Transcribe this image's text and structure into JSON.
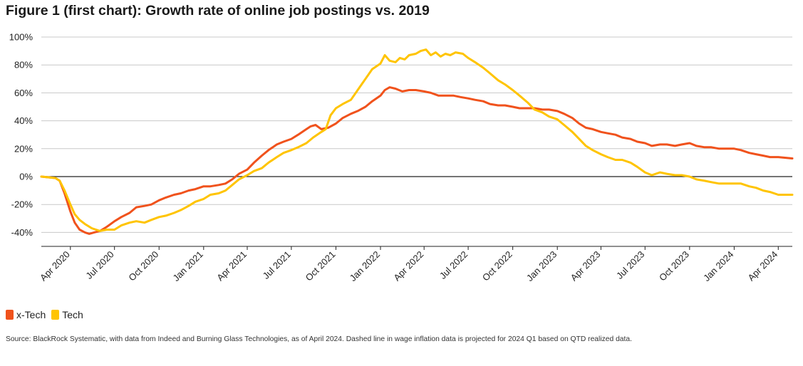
{
  "title": "Figure 1 (first chart): Growth rate of online job postings vs. 2019",
  "source": "Source: BlackRock Systematic, with data from Indeed and Burning Glass Technologies, as of April 2024. Dashed line in wage inflation data is projected for 2024 Q1 based on QTD realized data.",
  "chart_data": {
    "type": "line",
    "title": "Figure 1 (first chart): Growth rate of online job postings vs. 2019",
    "xlabel": "",
    "ylabel": "",
    "ylim": [
      -0.5,
      1.0
    ],
    "y_ticks": [
      1.0,
      0.8,
      0.6,
      0.4,
      0.2,
      0.0,
      -0.2,
      -0.4
    ],
    "y_tick_labels": [
      "100%",
      "80%",
      "60%",
      "40%",
      "20%",
      "0%",
      "-20%",
      "-40%"
    ],
    "x_range": [
      "2020-02-01",
      "2024-04-30"
    ],
    "x_ticks": [
      "2020-04-01",
      "2020-07-01",
      "2020-10-01",
      "2021-01-01",
      "2021-04-01",
      "2021-07-01",
      "2021-10-01",
      "2022-01-01",
      "2022-04-01",
      "2022-07-01",
      "2022-10-01",
      "2023-01-01",
      "2023-04-01",
      "2023-07-01",
      "2023-10-01",
      "2024-01-01",
      "2024-04-01"
    ],
    "x_tick_labels": [
      "Apr 2020",
      "Jul 2020",
      "Oct 2020",
      "Jan 2021",
      "Apr 2021",
      "Jul 2021",
      "Oct 2021",
      "Jan 2022",
      "Apr 2022",
      "Jul 2022",
      "Oct 2022",
      "Jan 2023",
      "Apr 2023",
      "Jul 2023",
      "Oct 2023",
      "Jan 2024",
      "Apr 2024"
    ],
    "grid": true,
    "legend_position": "bottom-left",
    "series": [
      {
        "name": "x-Tech",
        "color": "#F0521C",
        "points": [
          [
            "2020-02-01",
            0.0
          ],
          [
            "2020-03-01",
            -0.01
          ],
          [
            "2020-03-10",
            -0.03
          ],
          [
            "2020-03-20",
            -0.12
          ],
          [
            "2020-04-01",
            -0.25
          ],
          [
            "2020-04-10",
            -0.33
          ],
          [
            "2020-04-20",
            -0.38
          ],
          [
            "2020-05-01",
            -0.4
          ],
          [
            "2020-05-10",
            -0.41
          ],
          [
            "2020-05-20",
            -0.4
          ],
          [
            "2020-06-01",
            -0.39
          ],
          [
            "2020-06-15",
            -0.36
          ],
          [
            "2020-07-01",
            -0.32
          ],
          [
            "2020-07-15",
            -0.29
          ],
          [
            "2020-08-01",
            -0.26
          ],
          [
            "2020-08-15",
            -0.22
          ],
          [
            "2020-09-01",
            -0.21
          ],
          [
            "2020-09-15",
            -0.2
          ],
          [
            "2020-10-01",
            -0.17
          ],
          [
            "2020-10-15",
            -0.15
          ],
          [
            "2020-11-01",
            -0.13
          ],
          [
            "2020-11-15",
            -0.12
          ],
          [
            "2020-12-01",
            -0.1
          ],
          [
            "2020-12-15",
            -0.09
          ],
          [
            "2021-01-01",
            -0.07
          ],
          [
            "2021-01-15",
            -0.07
          ],
          [
            "2021-02-01",
            -0.06
          ],
          [
            "2021-02-15",
            -0.05
          ],
          [
            "2021-03-01",
            -0.02
          ],
          [
            "2021-03-15",
            0.02
          ],
          [
            "2021-04-01",
            0.05
          ],
          [
            "2021-04-15",
            0.1
          ],
          [
            "2021-05-01",
            0.15
          ],
          [
            "2021-05-15",
            0.19
          ],
          [
            "2021-06-01",
            0.23
          ],
          [
            "2021-06-15",
            0.25
          ],
          [
            "2021-07-01",
            0.27
          ],
          [
            "2021-07-15",
            0.3
          ],
          [
            "2021-08-01",
            0.34
          ],
          [
            "2021-08-10",
            0.36
          ],
          [
            "2021-08-20",
            0.37
          ],
          [
            "2021-09-01",
            0.34
          ],
          [
            "2021-09-15",
            0.35
          ],
          [
            "2021-10-01",
            0.38
          ],
          [
            "2021-10-15",
            0.42
          ],
          [
            "2021-11-01",
            0.45
          ],
          [
            "2021-11-15",
            0.47
          ],
          [
            "2021-12-01",
            0.5
          ],
          [
            "2021-12-15",
            0.54
          ],
          [
            "2022-01-01",
            0.58
          ],
          [
            "2022-01-10",
            0.62
          ],
          [
            "2022-01-20",
            0.64
          ],
          [
            "2022-02-01",
            0.63
          ],
          [
            "2022-02-15",
            0.61
          ],
          [
            "2022-03-01",
            0.62
          ],
          [
            "2022-03-15",
            0.62
          ],
          [
            "2022-04-01",
            0.61
          ],
          [
            "2022-04-15",
            0.6
          ],
          [
            "2022-05-01",
            0.58
          ],
          [
            "2022-05-15",
            0.58
          ],
          [
            "2022-06-01",
            0.58
          ],
          [
            "2022-06-15",
            0.57
          ],
          [
            "2022-07-01",
            0.56
          ],
          [
            "2022-07-15",
            0.55
          ],
          [
            "2022-08-01",
            0.54
          ],
          [
            "2022-08-15",
            0.52
          ],
          [
            "2022-09-01",
            0.51
          ],
          [
            "2022-09-15",
            0.51
          ],
          [
            "2022-10-01",
            0.5
          ],
          [
            "2022-10-15",
            0.49
          ],
          [
            "2022-11-01",
            0.49
          ],
          [
            "2022-11-15",
            0.49
          ],
          [
            "2022-12-01",
            0.48
          ],
          [
            "2022-12-15",
            0.48
          ],
          [
            "2023-01-01",
            0.47
          ],
          [
            "2023-01-15",
            0.45
          ],
          [
            "2023-02-01",
            0.42
          ],
          [
            "2023-02-15",
            0.38
          ],
          [
            "2023-03-01",
            0.35
          ],
          [
            "2023-03-15",
            0.34
          ],
          [
            "2023-04-01",
            0.32
          ],
          [
            "2023-04-15",
            0.31
          ],
          [
            "2023-05-01",
            0.3
          ],
          [
            "2023-05-15",
            0.28
          ],
          [
            "2023-06-01",
            0.27
          ],
          [
            "2023-06-15",
            0.25
          ],
          [
            "2023-07-01",
            0.24
          ],
          [
            "2023-07-15",
            0.22
          ],
          [
            "2023-08-01",
            0.23
          ],
          [
            "2023-08-15",
            0.23
          ],
          [
            "2023-09-01",
            0.22
          ],
          [
            "2023-09-15",
            0.23
          ],
          [
            "2023-10-01",
            0.24
          ],
          [
            "2023-10-15",
            0.22
          ],
          [
            "2023-11-01",
            0.21
          ],
          [
            "2023-11-15",
            0.21
          ],
          [
            "2023-12-01",
            0.2
          ],
          [
            "2023-12-15",
            0.2
          ],
          [
            "2024-01-01",
            0.2
          ],
          [
            "2024-01-15",
            0.19
          ],
          [
            "2024-02-01",
            0.17
          ],
          [
            "2024-02-15",
            0.16
          ],
          [
            "2024-03-01",
            0.15
          ],
          [
            "2024-03-15",
            0.14
          ],
          [
            "2024-04-01",
            0.14
          ],
          [
            "2024-04-30",
            0.13
          ]
        ]
      },
      {
        "name": "Tech",
        "color": "#FFC400",
        "points": [
          [
            "2020-02-01",
            0.0
          ],
          [
            "2020-03-01",
            -0.01
          ],
          [
            "2020-03-10",
            -0.03
          ],
          [
            "2020-03-20",
            -0.1
          ],
          [
            "2020-04-01",
            -0.2
          ],
          [
            "2020-04-10",
            -0.27
          ],
          [
            "2020-04-20",
            -0.31
          ],
          [
            "2020-05-01",
            -0.34
          ],
          [
            "2020-05-15",
            -0.37
          ],
          [
            "2020-06-01",
            -0.39
          ],
          [
            "2020-06-15",
            -0.38
          ],
          [
            "2020-07-01",
            -0.38
          ],
          [
            "2020-07-15",
            -0.35
          ],
          [
            "2020-08-01",
            -0.33
          ],
          [
            "2020-08-15",
            -0.32
          ],
          [
            "2020-09-01",
            -0.33
          ],
          [
            "2020-09-15",
            -0.31
          ],
          [
            "2020-10-01",
            -0.29
          ],
          [
            "2020-10-15",
            -0.28
          ],
          [
            "2020-11-01",
            -0.26
          ],
          [
            "2020-11-15",
            -0.24
          ],
          [
            "2020-12-01",
            -0.21
          ],
          [
            "2020-12-15",
            -0.18
          ],
          [
            "2021-01-01",
            -0.16
          ],
          [
            "2021-01-15",
            -0.13
          ],
          [
            "2021-02-01",
            -0.12
          ],
          [
            "2021-02-15",
            -0.1
          ],
          [
            "2021-03-01",
            -0.06
          ],
          [
            "2021-03-15",
            -0.02
          ],
          [
            "2021-04-01",
            0.01
          ],
          [
            "2021-04-15",
            0.04
          ],
          [
            "2021-05-01",
            0.06
          ],
          [
            "2021-05-15",
            0.1
          ],
          [
            "2021-06-01",
            0.14
          ],
          [
            "2021-06-15",
            0.17
          ],
          [
            "2021-07-01",
            0.19
          ],
          [
            "2021-07-15",
            0.21
          ],
          [
            "2021-08-01",
            0.24
          ],
          [
            "2021-08-15",
            0.28
          ],
          [
            "2021-09-01",
            0.32
          ],
          [
            "2021-09-10",
            0.34
          ],
          [
            "2021-09-20",
            0.44
          ],
          [
            "2021-10-01",
            0.49
          ],
          [
            "2021-10-15",
            0.52
          ],
          [
            "2021-11-01",
            0.55
          ],
          [
            "2021-11-15",
            0.62
          ],
          [
            "2021-12-01",
            0.7
          ],
          [
            "2021-12-15",
            0.77
          ],
          [
            "2022-01-01",
            0.81
          ],
          [
            "2022-01-10",
            0.87
          ],
          [
            "2022-01-20",
            0.83
          ],
          [
            "2022-02-01",
            0.82
          ],
          [
            "2022-02-10",
            0.85
          ],
          [
            "2022-02-20",
            0.84
          ],
          [
            "2022-03-01",
            0.87
          ],
          [
            "2022-03-15",
            0.88
          ],
          [
            "2022-03-25",
            0.9
          ],
          [
            "2022-04-05",
            0.91
          ],
          [
            "2022-04-15",
            0.87
          ],
          [
            "2022-04-25",
            0.89
          ],
          [
            "2022-05-05",
            0.86
          ],
          [
            "2022-05-15",
            0.88
          ],
          [
            "2022-05-25",
            0.87
          ],
          [
            "2022-06-05",
            0.89
          ],
          [
            "2022-06-20",
            0.88
          ],
          [
            "2022-07-01",
            0.85
          ],
          [
            "2022-07-15",
            0.82
          ],
          [
            "2022-08-01",
            0.78
          ],
          [
            "2022-08-15",
            0.74
          ],
          [
            "2022-09-01",
            0.69
          ],
          [
            "2022-09-15",
            0.66
          ],
          [
            "2022-10-01",
            0.62
          ],
          [
            "2022-10-15",
            0.58
          ],
          [
            "2022-11-01",
            0.53
          ],
          [
            "2022-11-15",
            0.48
          ],
          [
            "2022-12-01",
            0.46
          ],
          [
            "2022-12-15",
            0.43
          ],
          [
            "2023-01-01",
            0.41
          ],
          [
            "2023-01-15",
            0.37
          ],
          [
            "2023-02-01",
            0.32
          ],
          [
            "2023-02-15",
            0.27
          ],
          [
            "2023-03-01",
            0.22
          ],
          [
            "2023-03-15",
            0.19
          ],
          [
            "2023-04-01",
            0.16
          ],
          [
            "2023-04-15",
            0.14
          ],
          [
            "2023-05-01",
            0.12
          ],
          [
            "2023-05-15",
            0.12
          ],
          [
            "2023-06-01",
            0.1
          ],
          [
            "2023-06-15",
            0.07
          ],
          [
            "2023-07-01",
            0.03
          ],
          [
            "2023-07-15",
            0.01
          ],
          [
            "2023-08-01",
            0.03
          ],
          [
            "2023-08-15",
            0.02
          ],
          [
            "2023-09-01",
            0.01
          ],
          [
            "2023-09-15",
            0.01
          ],
          [
            "2023-10-01",
            0.0
          ],
          [
            "2023-10-15",
            -0.02
          ],
          [
            "2023-11-01",
            -0.03
          ],
          [
            "2023-11-15",
            -0.04
          ],
          [
            "2023-12-01",
            -0.05
          ],
          [
            "2023-12-15",
            -0.05
          ],
          [
            "2024-01-01",
            -0.05
          ],
          [
            "2024-01-15",
            -0.05
          ],
          [
            "2024-02-01",
            -0.07
          ],
          [
            "2024-02-15",
            -0.08
          ],
          [
            "2024-03-01",
            -0.1
          ],
          [
            "2024-03-15",
            -0.11
          ],
          [
            "2024-04-01",
            -0.13
          ],
          [
            "2024-04-30",
            -0.13
          ]
        ]
      }
    ]
  },
  "legend": [
    {
      "label": "x-Tech",
      "color": "#F0521C"
    },
    {
      "label": "Tech",
      "color": "#FFC400"
    }
  ]
}
